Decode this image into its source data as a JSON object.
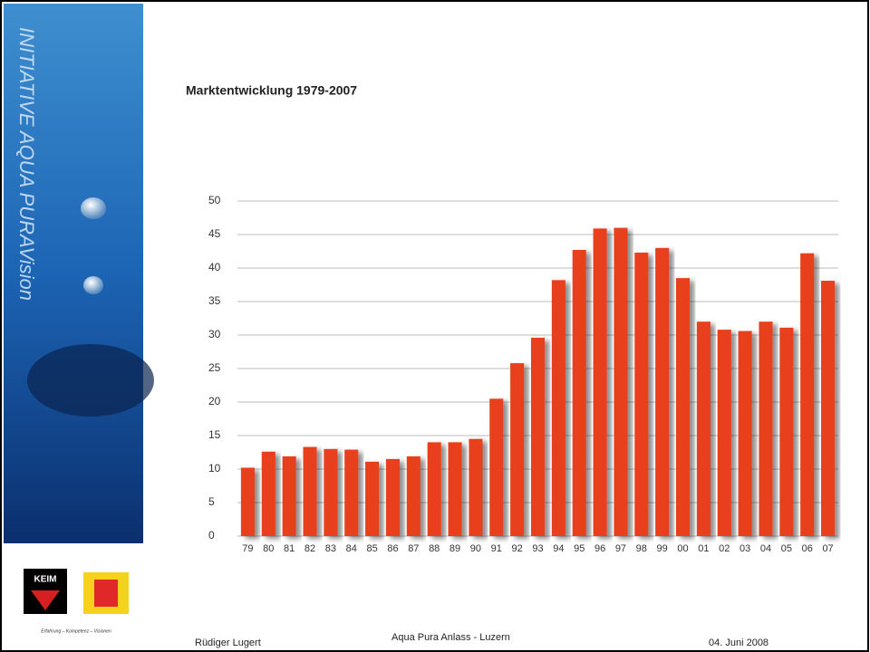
{
  "sidebar": {
    "brand": "INITIATIVE AQUA PURAVision",
    "logo_text": "KEIM",
    "slogan": "Erfahrung – Kompetenz – Visionen"
  },
  "chart_data": {
    "type": "bar",
    "title": "Marktentwicklung 1979-2007",
    "categories": [
      "79",
      "80",
      "81",
      "82",
      "83",
      "84",
      "85",
      "86",
      "87",
      "88",
      "89",
      "90",
      "91",
      "92",
      "93",
      "94",
      "95",
      "96",
      "97",
      "98",
      "99",
      "00",
      "01",
      "02",
      "03",
      "04",
      "05",
      "06",
      "07"
    ],
    "values": [
      10.2,
      12.6,
      11.9,
      13.3,
      13.0,
      12.9,
      11.1,
      11.5,
      11.9,
      14.0,
      14.0,
      14.5,
      20.5,
      25.8,
      29.6,
      38.2,
      42.7,
      45.9,
      46.0,
      42.3,
      43.0,
      38.5,
      32.0,
      30.8,
      30.6,
      32.0,
      31.1,
      42.2,
      38.1
    ],
    "color": "#e8401c",
    "ylim": [
      0,
      50
    ],
    "yticks": [
      0,
      5,
      10,
      15,
      20,
      25,
      30,
      35,
      40,
      45,
      50
    ],
    "grid": true
  },
  "footer": {
    "author": "Rüdiger Lugert",
    "event": "Aqua Pura Anlass - Luzern",
    "date": "04. Juni 2008"
  }
}
